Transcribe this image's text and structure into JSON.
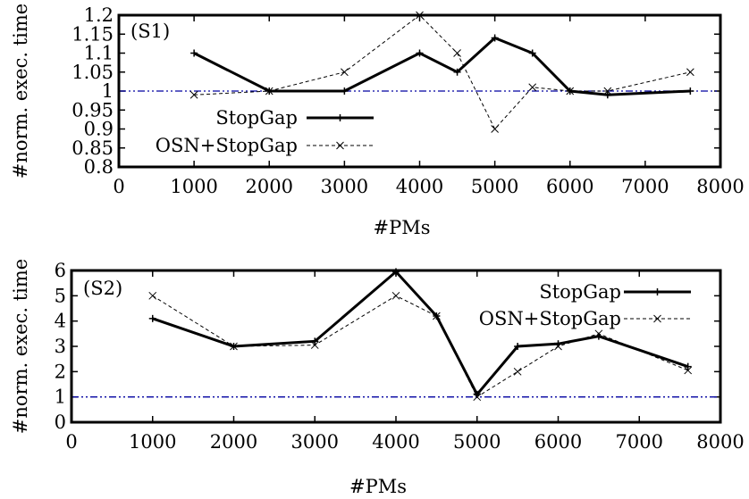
{
  "chart_data": [
    {
      "type": "line",
      "annotation": "(S1)",
      "xlabel": "#PMs",
      "ylabel": "#norm. exec. time",
      "xlim": [
        0,
        8000
      ],
      "ylim": [
        0.8,
        1.2
      ],
      "xticks": [
        "0",
        "1000",
        "2000",
        "3000",
        "4000",
        "5000",
        "6000",
        "7000",
        "8000"
      ],
      "yticks": [
        "0.8",
        "0.85",
        "0.9",
        "0.95",
        "1",
        "1.05",
        "1.1",
        "1.15",
        "1.2"
      ],
      "reference_line": {
        "y": 1,
        "color": "#0000a0",
        "style": "dash-dot"
      },
      "legend_position": "center-left",
      "series": [
        {
          "name": "StopGap",
          "style": "solid",
          "marker": "plus",
          "color": "#000000",
          "x": [
            1000,
            2000,
            3000,
            4000,
            4500,
            5000,
            5500,
            6000,
            6500,
            7600
          ],
          "y": [
            1.1,
            1.0,
            1.0,
            1.1,
            1.05,
            1.14,
            1.1,
            1.0,
            0.99,
            1.0
          ]
        },
        {
          "name": "OSN+StopGap",
          "style": "dashed",
          "marker": "cross",
          "color": "#000000",
          "x": [
            1000,
            2000,
            3000,
            4000,
            4500,
            5000,
            5500,
            6000,
            6500,
            7600
          ],
          "y": [
            0.99,
            1.0,
            1.05,
            1.2,
            1.1,
            0.9,
            1.01,
            1.0,
            1.0,
            1.05
          ]
        }
      ]
    },
    {
      "type": "line",
      "annotation": "(S2)",
      "xlabel": "#PMs",
      "ylabel": "#norm. exec. time",
      "xlim": [
        0,
        8000
      ],
      "ylim": [
        0,
        6
      ],
      "xticks": [
        "0",
        "1000",
        "2000",
        "3000",
        "4000",
        "5000",
        "6000",
        "7000",
        "8000"
      ],
      "yticks": [
        "0",
        "1",
        "2",
        "3",
        "4",
        "5",
        "6"
      ],
      "reference_line": {
        "y": 1,
        "color": "#0000a0",
        "style": "dash-dot"
      },
      "legend_position": "top-right",
      "series": [
        {
          "name": "StopGap",
          "style": "solid",
          "marker": "plus",
          "color": "#000000",
          "x": [
            1000,
            2000,
            3000,
            4000,
            4500,
            5000,
            5500,
            6000,
            6500,
            7600
          ],
          "y": [
            4.1,
            3.0,
            3.2,
            5.95,
            4.2,
            1.1,
            3.0,
            3.1,
            3.4,
            2.2
          ]
        },
        {
          "name": "OSN+StopGap",
          "style": "dashed",
          "marker": "cross",
          "color": "#000000",
          "x": [
            1000,
            2000,
            3000,
            4000,
            4500,
            5000,
            5500,
            6000,
            6500,
            7600
          ],
          "y": [
            5.0,
            3.0,
            3.05,
            5.0,
            4.2,
            1.0,
            2.0,
            3.0,
            3.5,
            2.05
          ]
        }
      ]
    }
  ]
}
